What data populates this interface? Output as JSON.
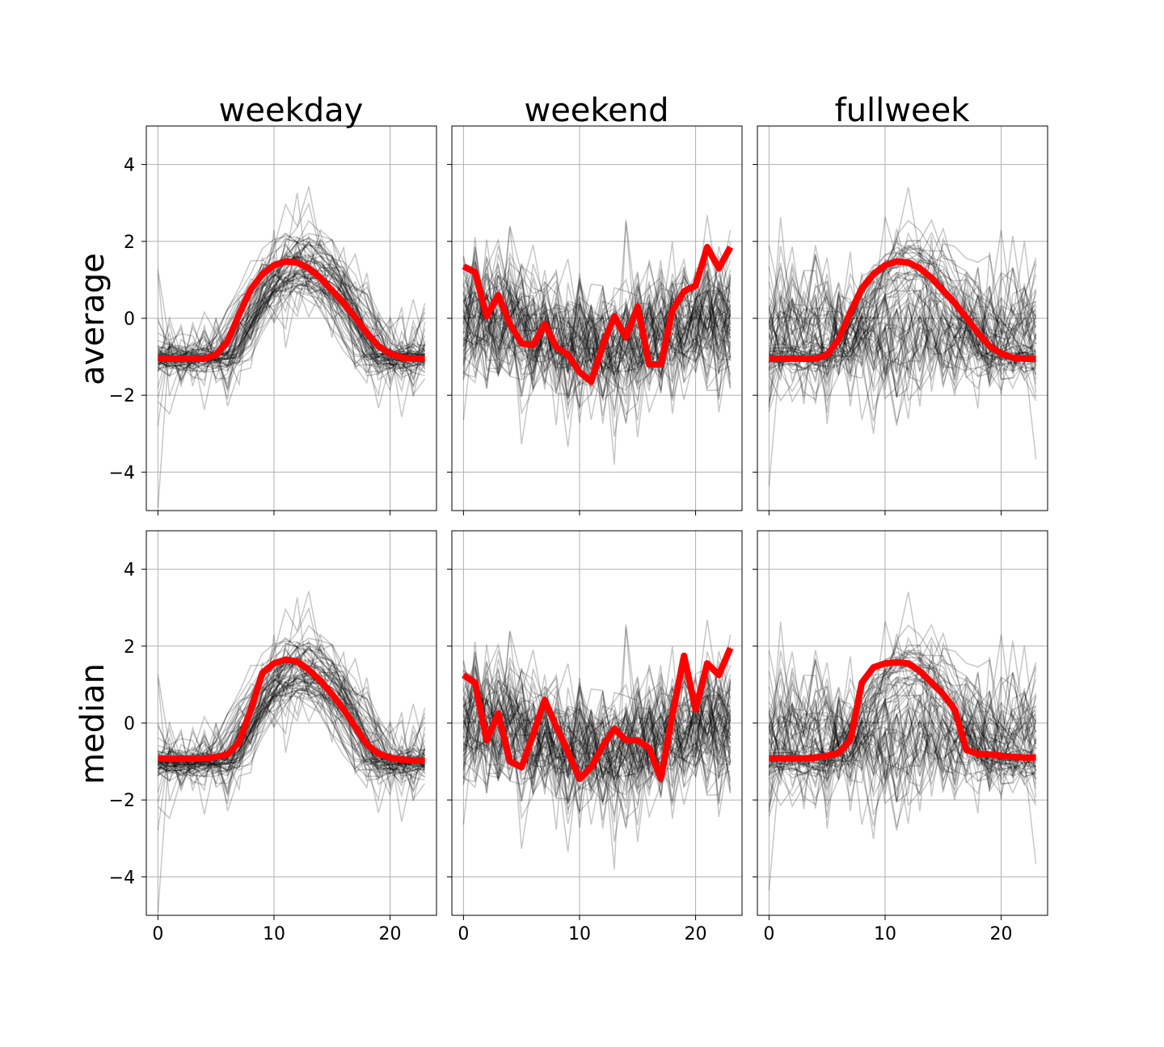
{
  "figure": {
    "columns": [
      "weekday",
      "weekend",
      "fullweek"
    ],
    "rows": [
      "average",
      "median"
    ]
  },
  "chart_data": [
    {
      "type": "line",
      "panel": "average-weekday",
      "title": "weekday",
      "ylabel": "average",
      "xlabel": "",
      "xlim": [
        -1,
        24
      ],
      "ylim": [
        -5,
        5
      ],
      "x_ticks": [
        0,
        10,
        20
      ],
      "y_ticks": [
        -4,
        -2,
        0,
        2,
        4
      ],
      "grid": true,
      "series": [
        {
          "role": "highlight",
          "color": "#ff0000",
          "x": [
            0,
            1,
            2,
            3,
            4,
            5,
            6,
            7,
            8,
            9,
            10,
            11,
            12,
            13,
            14,
            15,
            16,
            17,
            18,
            19,
            20,
            21,
            22,
            23
          ],
          "values": [
            -1.05,
            -1.05,
            -1.05,
            -1.05,
            -1.05,
            -0.95,
            -0.6,
            0.1,
            0.75,
            1.15,
            1.38,
            1.48,
            1.45,
            1.3,
            1.05,
            0.72,
            0.4,
            0.02,
            -0.38,
            -0.72,
            -0.92,
            -1.02,
            -1.05,
            -1.05
          ]
        }
      ]
    },
    {
      "type": "line",
      "panel": "average-weekend",
      "title": "weekend",
      "ylabel": "",
      "xlabel": "",
      "xlim": [
        -1,
        24
      ],
      "ylim": [
        -5,
        5
      ],
      "x_ticks": [
        0,
        10,
        20
      ],
      "y_ticks": [
        -4,
        -2,
        0,
        2,
        4
      ],
      "grid": true,
      "series": [
        {
          "role": "highlight",
          "color": "#ff0000",
          "x": [
            0,
            1,
            2,
            3,
            4,
            5,
            6,
            7,
            8,
            9,
            10,
            11,
            12,
            13,
            14,
            15,
            16,
            17,
            18,
            19,
            20,
            21,
            22,
            23
          ],
          "values": [
            1.35,
            1.2,
            0.05,
            0.6,
            -0.15,
            -0.65,
            -0.7,
            -0.15,
            -0.75,
            -0.95,
            -1.4,
            -1.65,
            -0.7,
            0.05,
            -0.5,
            0.3,
            -1.2,
            -1.2,
            0.2,
            0.7,
            0.85,
            1.85,
            1.3,
            1.85
          ]
        }
      ]
    },
    {
      "type": "line",
      "panel": "average-fullweek",
      "title": "fullweek",
      "ylabel": "",
      "xlabel": "",
      "xlim": [
        -1,
        24
      ],
      "ylim": [
        -5,
        5
      ],
      "x_ticks": [
        0,
        10,
        20
      ],
      "y_ticks": [
        -4,
        -2,
        0,
        2,
        4
      ],
      "grid": true,
      "series": [
        {
          "role": "highlight",
          "color": "#ff0000",
          "x": [
            0,
            1,
            2,
            3,
            4,
            5,
            6,
            7,
            8,
            9,
            10,
            11,
            12,
            13,
            14,
            15,
            16,
            17,
            18,
            19,
            20,
            21,
            22,
            23
          ],
          "values": [
            -1.05,
            -1.05,
            -1.05,
            -1.05,
            -1.05,
            -0.95,
            -0.55,
            0.15,
            0.78,
            1.15,
            1.38,
            1.48,
            1.45,
            1.3,
            1.05,
            0.72,
            0.4,
            0.02,
            -0.38,
            -0.72,
            -0.92,
            -1.02,
            -1.05,
            -1.05
          ]
        }
      ]
    },
    {
      "type": "line",
      "panel": "median-weekday",
      "title": "",
      "ylabel": "median",
      "xlabel": "",
      "xlim": [
        -1,
        24
      ],
      "ylim": [
        -5,
        5
      ],
      "x_ticks": [
        0,
        10,
        20
      ],
      "y_ticks": [
        -4,
        -2,
        0,
        2,
        4
      ],
      "grid": true,
      "series": [
        {
          "role": "highlight",
          "color": "#ff0000",
          "x": [
            0,
            1,
            2,
            3,
            4,
            5,
            6,
            7,
            8,
            9,
            10,
            11,
            12,
            13,
            14,
            15,
            16,
            17,
            18,
            19,
            20,
            21,
            22,
            23
          ],
          "values": [
            -0.92,
            -0.93,
            -0.93,
            -0.93,
            -0.92,
            -0.88,
            -0.82,
            -0.5,
            0.35,
            1.3,
            1.55,
            1.65,
            1.6,
            1.38,
            1.1,
            0.75,
            0.35,
            -0.1,
            -0.55,
            -0.8,
            -0.9,
            -0.95,
            -0.97,
            -0.97
          ]
        }
      ]
    },
    {
      "type": "line",
      "panel": "median-weekend",
      "title": "",
      "ylabel": "",
      "xlabel": "",
      "xlim": [
        -1,
        24
      ],
      "ylim": [
        -5,
        5
      ],
      "x_ticks": [
        0,
        10,
        20
      ],
      "y_ticks": [
        -4,
        -2,
        0,
        2,
        4
      ],
      "grid": true,
      "series": [
        {
          "role": "highlight",
          "color": "#ff0000",
          "x": [
            0,
            1,
            2,
            3,
            4,
            5,
            6,
            7,
            8,
            9,
            10,
            11,
            12,
            13,
            14,
            15,
            16,
            17,
            18,
            19,
            20,
            21,
            22,
            23
          ],
          "values": [
            1.25,
            1.05,
            -0.45,
            0.25,
            -1.0,
            -1.15,
            -0.3,
            0.6,
            -0.1,
            -0.75,
            -1.45,
            -1.15,
            -0.6,
            -0.15,
            -0.45,
            -0.45,
            -0.65,
            -1.45,
            0.2,
            1.75,
            0.35,
            1.55,
            1.25,
            1.95
          ]
        }
      ]
    },
    {
      "type": "line",
      "panel": "median-fullweek",
      "title": "",
      "ylabel": "",
      "xlabel": "",
      "xlim": [
        -1,
        24
      ],
      "ylim": [
        -5,
        5
      ],
      "x_ticks": [
        0,
        10,
        20
      ],
      "y_ticks": [
        -4,
        -2,
        0,
        2,
        4
      ],
      "grid": true,
      "series": [
        {
          "role": "highlight",
          "color": "#ff0000",
          "x": [
            0,
            1,
            2,
            3,
            4,
            5,
            6,
            7,
            8,
            9,
            10,
            11,
            12,
            13,
            14,
            15,
            16,
            17,
            18,
            19,
            20,
            21,
            22,
            23
          ],
          "values": [
            -0.92,
            -0.92,
            -0.92,
            -0.92,
            -0.9,
            -0.85,
            -0.78,
            -0.45,
            1.05,
            1.45,
            1.55,
            1.58,
            1.55,
            1.35,
            1.05,
            0.75,
            0.35,
            -0.7,
            -0.8,
            -0.82,
            -0.85,
            -0.88,
            -0.9,
            -0.9
          ]
        }
      ]
    }
  ],
  "background_traces": {
    "color": "#000000",
    "count_per_panel": 70,
    "daytime_shape_color_note": "black"
  }
}
